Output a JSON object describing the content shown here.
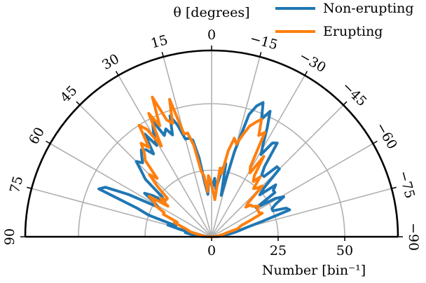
{
  "chart_data": {
    "type": "polar-line",
    "title": "θ [degrees]",
    "radial_label": "Number [bin⁻¹]",
    "theta_range": [
      -90,
      90
    ],
    "theta_ticks": [
      90,
      75,
      60,
      45,
      30,
      15,
      0,
      -15,
      -30,
      -45,
      -60,
      -75,
      -90
    ],
    "theta_tick_labels": [
      "90",
      "75",
      "60",
      "45",
      "30",
      "15",
      "0",
      "−15",
      "−30",
      "−45",
      "−60",
      "−75",
      "−90"
    ],
    "r_range": [
      0,
      70
    ],
    "r_ticks": [
      0,
      25,
      50
    ],
    "r_tick_labels": [
      "0",
      "25",
      "50"
    ],
    "r_grid": [
      25,
      50
    ],
    "theta_grid_step": 15,
    "grid": true,
    "legend": "top-right",
    "series": [
      {
        "name": "Non-erupting",
        "color": "#1f77b4",
        "theta": [
          89,
          87,
          85,
          83,
          81,
          79,
          77,
          75,
          73,
          71,
          69,
          67,
          65,
          63,
          61,
          59,
          57,
          55,
          53,
          51,
          49,
          47,
          45,
          43,
          41,
          39,
          37,
          35,
          33,
          31,
          29,
          27,
          25,
          23,
          21,
          19,
          17,
          15,
          13,
          11,
          9,
          7,
          5,
          3,
          1,
          -1,
          -3,
          -5,
          -7,
          -9,
          -11,
          -13,
          -15,
          -17,
          -19,
          -21,
          -23,
          -25,
          -27,
          -29,
          -31,
          -33,
          -35,
          -37,
          -39,
          -41,
          -43,
          -45,
          -47,
          -49,
          -51,
          -53,
          -55,
          -57,
          -59,
          -61,
          -63,
          -65,
          -67,
          -69,
          -71,
          -73,
          -75,
          -77,
          -79,
          -81,
          -83,
          -85,
          -87,
          -89
        ],
        "values": [
          3,
          5,
          6,
          8,
          10,
          8,
          12,
          17,
          14,
          25,
          30,
          46,
          44,
          35,
          23,
          25,
          30,
          27,
          22,
          24,
          33,
          36,
          40,
          38,
          40,
          42,
          41,
          38,
          46,
          40,
          45,
          49,
          42,
          44,
          41,
          48,
          44,
          38,
          38,
          37,
          30,
          20,
          16,
          21,
          20,
          19,
          22,
          18,
          21,
          26,
          28,
          16,
          33,
          48,
          52,
          54,
          48,
          52,
          46,
          40,
          36,
          42,
          43,
          33,
          30,
          30,
          36,
          36,
          27,
          24,
          31,
          29,
          29,
          20,
          28,
          31,
          27,
          25,
          25,
          30,
          31,
          20,
          14,
          11,
          9,
          7,
          5,
          4,
          3,
          2
        ]
      },
      {
        "name": "Erupting",
        "color": "#ff7f0e",
        "theta": [
          89,
          87,
          85,
          83,
          81,
          79,
          77,
          75,
          73,
          71,
          69,
          67,
          65,
          63,
          61,
          59,
          57,
          55,
          53,
          51,
          49,
          47,
          45,
          43,
          41,
          39,
          37,
          35,
          33,
          31,
          29,
          27,
          25,
          23,
          21,
          19,
          17,
          15,
          13,
          11,
          9,
          7,
          5,
          3,
          1,
          -1,
          -3,
          -5,
          -7,
          -9,
          -11,
          -13,
          -15,
          -17,
          -19,
          -21,
          -23,
          -25,
          -27,
          -29,
          -31,
          -33,
          -35,
          -37,
          -39,
          -41,
          -43,
          -45,
          -47,
          -49,
          -51,
          -53,
          -55,
          -57,
          -59,
          -61,
          -63,
          -65,
          -67,
          -69,
          -71,
          -73,
          -75,
          -77,
          -79,
          -81,
          -83,
          -85,
          -87,
          -89
        ],
        "values": [
          1,
          2,
          3,
          4,
          5,
          6,
          8,
          9,
          10,
          12,
          15,
          14,
          20,
          20,
          24,
          25,
          28,
          20,
          24,
          22,
          22,
          28,
          33,
          30,
          38,
          40,
          44,
          41,
          50,
          47,
          39,
          52,
          46,
          57,
          47,
          45,
          54,
          40,
          40,
          35,
          25,
          23,
          17,
          23,
          21,
          18,
          16,
          14,
          26,
          24,
          33,
          38,
          36,
          40,
          44,
          46,
          48,
          42,
          44,
          30,
          28,
          36,
          28,
          26,
          29,
          24,
          25,
          27,
          19,
          17,
          19,
          19,
          20,
          21,
          20,
          20,
          20,
          21,
          16,
          12,
          11,
          10,
          6,
          5,
          4,
          3,
          3,
          2,
          2,
          1
        ]
      }
    ]
  }
}
